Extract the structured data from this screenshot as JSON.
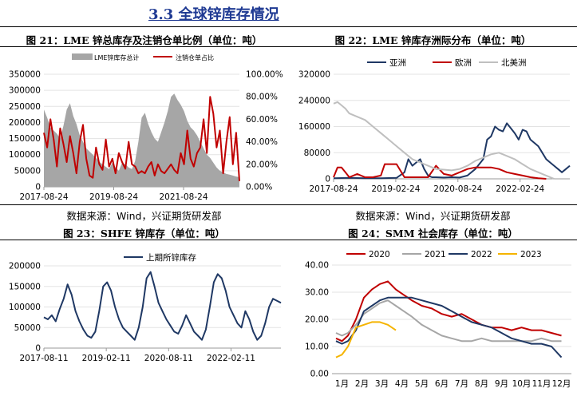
{
  "section_title": "3.3 全球锌库存情况",
  "figures": [
    {
      "title": "图 21：LME 锌总库存及注销仓单比例（单位：吨）",
      "source": "数据来源：Wind，兴证期货研发部"
    },
    {
      "title": "图 22：LME 锌库存洲际分布（单位：吨）",
      "source": "数据来源：Wind，兴证期货研发部"
    },
    {
      "title": "图 23：SHFE 锌库存（单位：吨）"
    },
    {
      "title": "图 24：SMM 社会库存（单位：吨）"
    }
  ],
  "chart_data": [
    {
      "type": "area",
      "legend_position": "top",
      "x_ticks": [
        "2017-08-24",
        "2019-08-24",
        "2021-08-24"
      ],
      "y_ticks": [
        "0",
        "50000",
        "100000",
        "150000",
        "200000",
        "250000",
        "300000",
        "350000"
      ],
      "y2_ticks": [
        "0.00%",
        "20.00%",
        "40.00%",
        "60.00%",
        "80.00%",
        "100.00%"
      ],
      "ylim": [
        0,
        350000
      ],
      "y2lim": [
        0,
        1
      ],
      "xlim": [
        0,
        6
      ],
      "series": [
        {
          "name": "LME锌库存总计",
          "type": "area",
          "color": "#a6a6a6",
          "axis": "left",
          "x": [
            0,
            0.1,
            0.2,
            0.3,
            0.4,
            0.5,
            0.6,
            0.7,
            0.8,
            0.9,
            1.0,
            1.1,
            1.2,
            1.3,
            1.4,
            1.5,
            1.6,
            1.7,
            1.8,
            1.9,
            2.0,
            2.1,
            2.2,
            2.3,
            2.4,
            2.5,
            2.6,
            2.7,
            2.8,
            2.9,
            3.0,
            3.1,
            3.2,
            3.3,
            3.4,
            3.5,
            3.6,
            3.7,
            3.8,
            3.9,
            4.0,
            4.1,
            4.2,
            4.3,
            4.4,
            4.5,
            4.6,
            4.7,
            4.8,
            4.9,
            5.0,
            5.1,
            5.2,
            5.3,
            5.4,
            5.5,
            5.6,
            5.7,
            5.8,
            5.9,
            6.0
          ],
          "values": [
            240000,
            215000,
            185000,
            175000,
            165000,
            150000,
            190000,
            240000,
            260000,
            220000,
            195000,
            160000,
            140000,
            120000,
            110000,
            100000,
            90000,
            78000,
            70000,
            62000,
            55000,
            75000,
            60000,
            50000,
            75000,
            70000,
            60000,
            55000,
            80000,
            140000,
            215000,
            230000,
            195000,
            170000,
            150000,
            140000,
            170000,
            200000,
            235000,
            280000,
            290000,
            270000,
            255000,
            235000,
            205000,
            185000,
            175000,
            160000,
            140000,
            120000,
            100000,
            90000,
            75000,
            60000,
            50000,
            45000,
            40000,
            38000,
            35000,
            32000,
            30000
          ]
        },
        {
          "name": "注销仓单占比",
          "type": "line",
          "color": "#c00000",
          "axis": "right",
          "x": [
            0,
            0.1,
            0.2,
            0.3,
            0.4,
            0.5,
            0.6,
            0.7,
            0.8,
            0.9,
            1.0,
            1.1,
            1.2,
            1.3,
            1.4,
            1.5,
            1.6,
            1.7,
            1.8,
            1.9,
            2.0,
            2.1,
            2.2,
            2.3,
            2.4,
            2.5,
            2.6,
            2.7,
            2.8,
            2.9,
            3.0,
            3.1,
            3.2,
            3.3,
            3.4,
            3.5,
            3.6,
            3.7,
            3.8,
            3.9,
            4.0,
            4.1,
            4.2,
            4.3,
            4.4,
            4.5,
            4.6,
            4.7,
            4.8,
            4.9,
            5.0,
            5.1,
            5.2,
            5.3,
            5.4,
            5.5,
            5.6,
            5.7,
            5.8,
            5.9,
            6.0
          ],
          "values": [
            0.48,
            0.35,
            0.6,
            0.42,
            0.18,
            0.52,
            0.38,
            0.22,
            0.45,
            0.3,
            0.12,
            0.4,
            0.55,
            0.25,
            0.1,
            0.08,
            0.35,
            0.2,
            0.15,
            0.42,
            0.18,
            0.25,
            0.12,
            0.3,
            0.22,
            0.16,
            0.4,
            0.2,
            0.18,
            0.12,
            0.14,
            0.12,
            0.18,
            0.22,
            0.1,
            0.2,
            0.14,
            0.12,
            0.16,
            0.2,
            0.15,
            0.12,
            0.3,
            0.2,
            0.5,
            0.25,
            0.18,
            0.3,
            0.35,
            0.6,
            0.3,
            0.8,
            0.65,
            0.35,
            0.5,
            0.12,
            0.4,
            0.62,
            0.2,
            0.48,
            0.05
          ]
        }
      ]
    },
    {
      "type": "line",
      "legend_position": "top",
      "x_ticks": [
        "2017-08-24",
        "2019-02-24",
        "2020-08-24",
        "2022-02-24"
      ],
      "y_ticks": [
        "0",
        "80000",
        "160000",
        "240000",
        "320000"
      ],
      "ylim": [
        0,
        320000
      ],
      "xlim": [
        0,
        6
      ],
      "series": [
        {
          "name": "亚洲",
          "color": "#1f3864",
          "x": [
            0,
            0.4,
            0.8,
            1.2,
            1.6,
            1.8,
            1.9,
            2.0,
            2.1,
            2.2,
            2.3,
            2.4,
            2.5,
            2.6,
            2.8,
            3.0,
            3.2,
            3.4,
            3.6,
            3.8,
            3.9,
            4.0,
            4.1,
            4.2,
            4.3,
            4.4,
            4.5,
            4.6,
            4.7,
            4.8,
            4.9,
            5.0,
            5.1,
            5.2,
            5.3,
            5.4,
            5.5,
            5.6,
            5.7,
            5.8,
            5.9,
            6.0
          ],
          "values": [
            2000,
            3000,
            2000,
            2000,
            3000,
            20000,
            60000,
            40000,
            50000,
            60000,
            30000,
            10000,
            5000,
            5000,
            4000,
            5000,
            4000,
            10000,
            30000,
            60000,
            120000,
            130000,
            160000,
            150000,
            145000,
            170000,
            155000,
            140000,
            120000,
            150000,
            145000,
            120000,
            110000,
            100000,
            80000,
            60000,
            50000,
            40000,
            30000,
            20000,
            30000,
            40000
          ]
        },
        {
          "name": "欧洲",
          "color": "#c00000",
          "x": [
            0,
            0.1,
            0.2,
            0.3,
            0.4,
            0.6,
            0.8,
            1.0,
            1.2,
            1.3,
            1.4,
            1.5,
            1.6,
            1.8,
            2.0,
            2.2,
            2.4,
            2.6,
            2.8,
            3.0,
            3.2,
            3.4,
            3.6,
            3.8,
            4.0,
            4.2,
            4.4,
            4.6,
            4.8,
            5.0,
            5.2,
            5.4
          ],
          "values": [
            5000,
            35000,
            35000,
            20000,
            5000,
            15000,
            5000,
            5000,
            10000,
            45000,
            45000,
            45000,
            45000,
            5000,
            5000,
            5000,
            5000,
            40000,
            15000,
            10000,
            20000,
            30000,
            35000,
            35000,
            35000,
            30000,
            20000,
            15000,
            10000,
            5000,
            2000,
            0
          ]
        },
        {
          "name": "北美洲",
          "color": "#bfbfbf",
          "x": [
            0,
            0.1,
            0.2,
            0.3,
            0.4,
            0.6,
            0.8,
            1.0,
            1.2,
            1.4,
            1.6,
            1.8,
            2.0,
            2.2,
            2.4,
            2.6,
            2.8,
            3.0,
            3.2,
            3.4,
            3.6,
            3.8,
            4.0,
            4.2,
            4.4,
            4.6,
            4.8,
            5.0,
            5.2,
            5.4,
            5.6
          ],
          "values": [
            230000,
            235000,
            225000,
            215000,
            200000,
            190000,
            180000,
            160000,
            140000,
            120000,
            100000,
            80000,
            60000,
            50000,
            40000,
            30000,
            28000,
            26000,
            30000,
            40000,
            55000,
            65000,
            75000,
            80000,
            70000,
            60000,
            45000,
            30000,
            20000,
            10000,
            0
          ]
        }
      ]
    },
    {
      "type": "line",
      "legend_position": "top",
      "x_ticks": [
        "2017-08-11",
        "2019-02-11",
        "2020-08-11",
        "2022-02-11"
      ],
      "y_ticks": [
        "0",
        "50000",
        "100000",
        "150000",
        "200000"
      ],
      "ylim": [
        0,
        200000
      ],
      "xlim": [
        0,
        6
      ],
      "series": [
        {
          "name": "上期所锌库存",
          "color": "#1f3864",
          "x": [
            0,
            0.1,
            0.2,
            0.3,
            0.4,
            0.5,
            0.6,
            0.7,
            0.8,
            0.9,
            1.0,
            1.1,
            1.2,
            1.3,
            1.4,
            1.5,
            1.6,
            1.7,
            1.8,
            1.9,
            2.0,
            2.1,
            2.2,
            2.3,
            2.4,
            2.5,
            2.6,
            2.7,
            2.8,
            2.9,
            3.0,
            3.1,
            3.2,
            3.3,
            3.4,
            3.5,
            3.6,
            3.7,
            3.8,
            3.9,
            4.0,
            4.1,
            4.2,
            4.3,
            4.4,
            4.5,
            4.6,
            4.7,
            4.8,
            4.9,
            5.0,
            5.1,
            5.2,
            5.3,
            5.4,
            5.5,
            5.6,
            5.7,
            5.8,
            5.9,
            6.0
          ],
          "values": [
            75000,
            70000,
            80000,
            65000,
            95000,
            120000,
            155000,
            130000,
            90000,
            65000,
            45000,
            30000,
            25000,
            40000,
            90000,
            150000,
            160000,
            140000,
            100000,
            70000,
            50000,
            40000,
            30000,
            20000,
            50000,
            100000,
            170000,
            185000,
            150000,
            110000,
            90000,
            70000,
            55000,
            40000,
            35000,
            55000,
            80000,
            60000,
            40000,
            30000,
            20000,
            45000,
            100000,
            160000,
            180000,
            170000,
            140000,
            100000,
            80000,
            60000,
            50000,
            90000,
            70000,
            40000,
            20000,
            30000,
            60000,
            100000,
            120000,
            115000,
            110000
          ]
        }
      ]
    },
    {
      "type": "line",
      "legend_position": "top",
      "categories": [
        "1月",
        "2月",
        "3月",
        "4月",
        "5月",
        "6月",
        "7月",
        "8月",
        "9月",
        "10月",
        "11月",
        "12月"
      ],
      "y_ticks": [
        "0.00",
        "10.00",
        "20.00",
        "30.00",
        "40.00"
      ],
      "ylim": [
        0,
        40
      ],
      "xlim": [
        0,
        12
      ],
      "series": [
        {
          "name": "2020",
          "color": "#c00000",
          "x": [
            0.2,
            0.5,
            0.8,
            1.2,
            1.6,
            2.0,
            2.4,
            2.8,
            3.2,
            3.6,
            4.0,
            4.5,
            5.0,
            5.5,
            6.0,
            6.5,
            7.0,
            7.5,
            8.0,
            8.5,
            9.0,
            9.5,
            10.0,
            10.5,
            11.0,
            11.5
          ],
          "values": [
            13,
            12,
            14,
            20,
            28,
            31,
            33,
            34,
            31,
            29,
            27,
            25,
            24,
            22,
            21,
            22,
            20,
            18,
            17,
            17,
            16,
            17,
            16,
            16,
            15,
            14
          ]
        },
        {
          "name": "2021",
          "color": "#a6a6a6",
          "x": [
            0.2,
            0.5,
            0.8,
            1.2,
            1.6,
            2.0,
            2.4,
            2.8,
            3.2,
            3.6,
            4.0,
            4.5,
            5.0,
            5.5,
            6.0,
            6.5,
            7.0,
            7.5,
            8.0,
            8.5,
            9.0,
            9.5,
            10.0,
            10.5,
            11.0,
            11.5
          ],
          "values": [
            15,
            14,
            15,
            18,
            22,
            24,
            26,
            27,
            25,
            23,
            21,
            18,
            16,
            14,
            13,
            12,
            12,
            13,
            12,
            12,
            12,
            12,
            12,
            13,
            12,
            12
          ]
        },
        {
          "name": "2022",
          "color": "#1f3864",
          "x": [
            0.2,
            0.5,
            0.8,
            1.2,
            1.6,
            2.0,
            2.4,
            2.8,
            3.2,
            3.6,
            4.0,
            4.5,
            5.0,
            5.5,
            6.0,
            6.5,
            7.0,
            7.5,
            8.0,
            8.5,
            9.0,
            9.5,
            10.0,
            10.5,
            11.0,
            11.5
          ],
          "values": [
            12,
            11,
            12,
            16,
            23,
            25,
            27,
            28,
            28,
            28,
            28,
            27,
            26,
            25,
            23,
            21,
            19,
            18,
            17,
            15,
            13,
            12,
            11,
            11,
            10,
            6
          ]
        },
        {
          "name": "2023",
          "color": "#f5b400",
          "x": [
            0.2,
            0.5,
            0.8,
            1.2,
            1.6,
            2.0,
            2.4,
            2.8,
            3.2
          ],
          "values": [
            6,
            7,
            10,
            17,
            18,
            19,
            19,
            18,
            16
          ]
        }
      ]
    }
  ]
}
